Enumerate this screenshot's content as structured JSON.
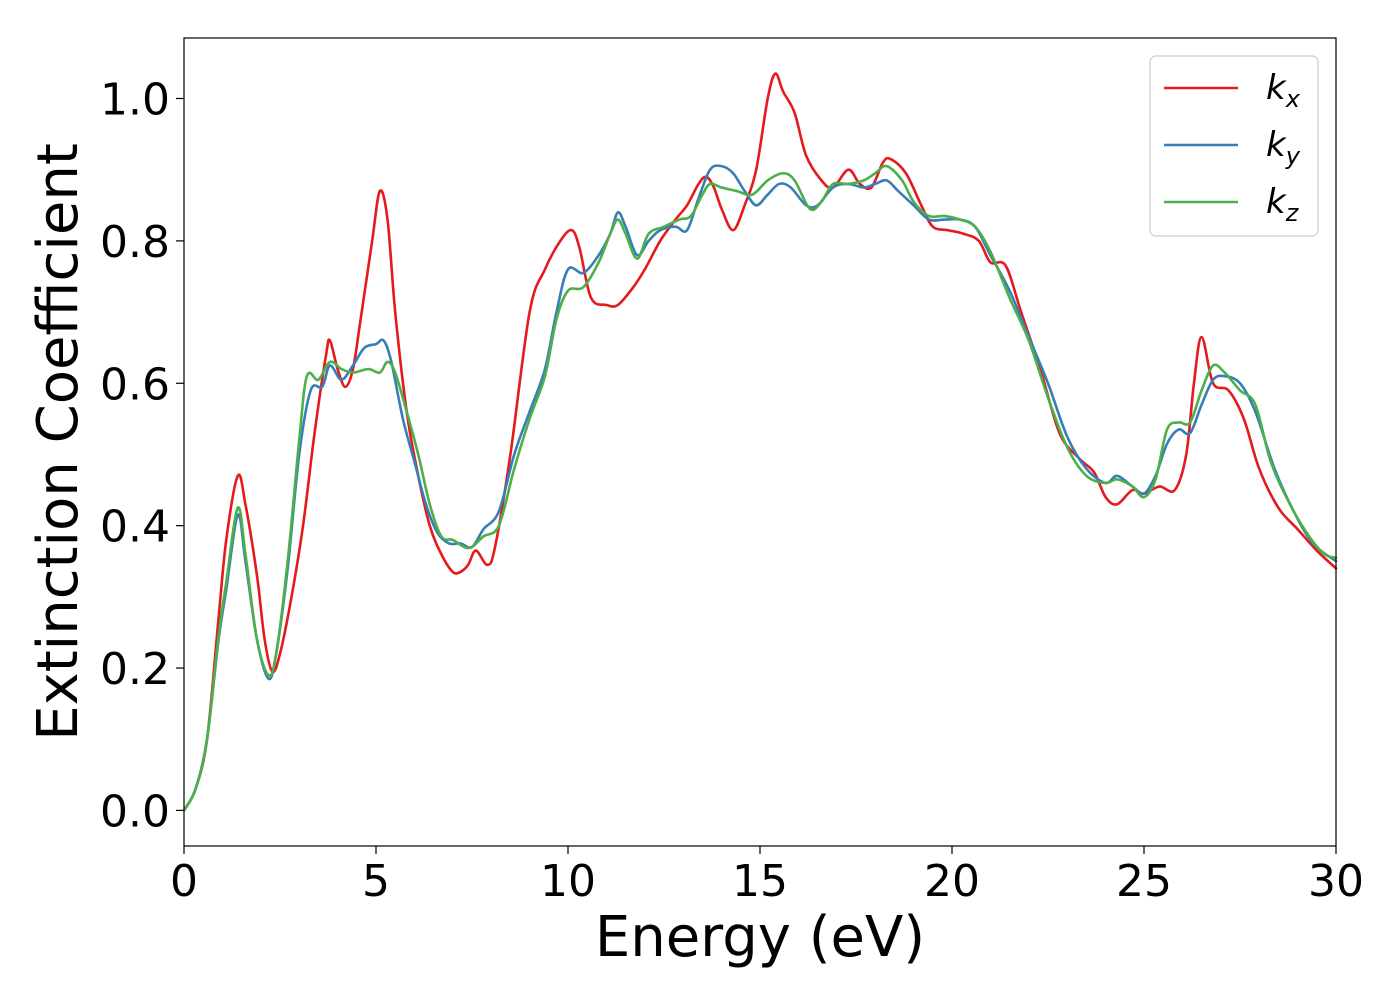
{
  "chart_data": {
    "type": "line",
    "xlabel": "Energy (eV)",
    "ylabel": "Extinction Coefficient",
    "xlim": [
      0,
      30
    ],
    "ylim": [
      -0.05,
      1.085
    ],
    "xticks": [
      0,
      5,
      10,
      15,
      20,
      25,
      30
    ],
    "yticks": [
      0.0,
      0.2,
      0.4,
      0.6,
      0.8,
      1.0
    ],
    "xtick_labels": [
      "0",
      "5",
      "10",
      "15",
      "20",
      "25",
      "30"
    ],
    "ytick_labels": [
      "0.0",
      "0.2",
      "0.4",
      "0.6",
      "0.8",
      "1.0"
    ],
    "grid": false,
    "legend_position": "top-right",
    "series": [
      {
        "name": "k_x",
        "label_base": "k",
        "label_sub": "x",
        "color": "#e41a1c",
        "points": [
          [
            0,
            0.0
          ],
          [
            0.3,
            0.03
          ],
          [
            0.6,
            0.1
          ],
          [
            0.9,
            0.27
          ],
          [
            1.1,
            0.38
          ],
          [
            1.4,
            0.47
          ],
          [
            1.6,
            0.43
          ],
          [
            1.9,
            0.33
          ],
          [
            2.1,
            0.24
          ],
          [
            2.3,
            0.195
          ],
          [
            2.5,
            0.22
          ],
          [
            2.8,
            0.3
          ],
          [
            3.1,
            0.4
          ],
          [
            3.4,
            0.53
          ],
          [
            3.7,
            0.64
          ],
          [
            3.8,
            0.66
          ],
          [
            4.0,
            0.62
          ],
          [
            4.2,
            0.595
          ],
          [
            4.4,
            0.62
          ],
          [
            4.6,
            0.69
          ],
          [
            4.9,
            0.8
          ],
          [
            5.1,
            0.87
          ],
          [
            5.3,
            0.83
          ],
          [
            5.5,
            0.7
          ],
          [
            5.8,
            0.56
          ],
          [
            6.1,
            0.47
          ],
          [
            6.4,
            0.4
          ],
          [
            6.7,
            0.36
          ],
          [
            7.0,
            0.335
          ],
          [
            7.2,
            0.335
          ],
          [
            7.4,
            0.345
          ],
          [
            7.6,
            0.365
          ],
          [
            7.9,
            0.345
          ],
          [
            8.1,
            0.37
          ],
          [
            8.5,
            0.5
          ],
          [
            9.0,
            0.7
          ],
          [
            9.4,
            0.76
          ],
          [
            9.8,
            0.8
          ],
          [
            10.1,
            0.815
          ],
          [
            10.3,
            0.79
          ],
          [
            10.6,
            0.72
          ],
          [
            11.0,
            0.71
          ],
          [
            11.3,
            0.71
          ],
          [
            11.7,
            0.735
          ],
          [
            12.0,
            0.76
          ],
          [
            12.4,
            0.8
          ],
          [
            12.8,
            0.83
          ],
          [
            13.1,
            0.85
          ],
          [
            13.4,
            0.88
          ],
          [
            13.6,
            0.89
          ],
          [
            13.8,
            0.875
          ],
          [
            14.0,
            0.845
          ],
          [
            14.3,
            0.815
          ],
          [
            14.6,
            0.85
          ],
          [
            14.9,
            0.9
          ],
          [
            15.2,
            1.0
          ],
          [
            15.4,
            1.035
          ],
          [
            15.6,
            1.01
          ],
          [
            15.9,
            0.98
          ],
          [
            16.2,
            0.92
          ],
          [
            16.6,
            0.885
          ],
          [
            16.9,
            0.875
          ],
          [
            17.3,
            0.9
          ],
          [
            17.6,
            0.88
          ],
          [
            17.9,
            0.875
          ],
          [
            18.2,
            0.91
          ],
          [
            18.4,
            0.915
          ],
          [
            18.8,
            0.895
          ],
          [
            19.2,
            0.85
          ],
          [
            19.5,
            0.82
          ],
          [
            19.9,
            0.815
          ],
          [
            20.3,
            0.81
          ],
          [
            20.7,
            0.8
          ],
          [
            21.0,
            0.77
          ],
          [
            21.4,
            0.765
          ],
          [
            21.8,
            0.7
          ],
          [
            22.3,
            0.62
          ],
          [
            22.8,
            0.53
          ],
          [
            23.3,
            0.495
          ],
          [
            23.7,
            0.475
          ],
          [
            24.0,
            0.44
          ],
          [
            24.3,
            0.43
          ],
          [
            24.7,
            0.45
          ],
          [
            25.0,
            0.445
          ],
          [
            25.4,
            0.455
          ],
          [
            25.8,
            0.45
          ],
          [
            26.1,
            0.5
          ],
          [
            26.3,
            0.6
          ],
          [
            26.5,
            0.665
          ],
          [
            26.8,
            0.6
          ],
          [
            27.2,
            0.59
          ],
          [
            27.6,
            0.55
          ],
          [
            28.0,
            0.48
          ],
          [
            28.5,
            0.425
          ],
          [
            29.0,
            0.395
          ],
          [
            29.5,
            0.365
          ],
          [
            30.0,
            0.34
          ]
        ]
      },
      {
        "name": "k_y",
        "label_base": "k",
        "label_sub": "y",
        "color": "#377eb8",
        "points": [
          [
            0,
            0.0
          ],
          [
            0.3,
            0.03
          ],
          [
            0.6,
            0.1
          ],
          [
            0.9,
            0.24
          ],
          [
            1.1,
            0.31
          ],
          [
            1.4,
            0.415
          ],
          [
            1.6,
            0.35
          ],
          [
            1.9,
            0.24
          ],
          [
            2.2,
            0.185
          ],
          [
            2.4,
            0.22
          ],
          [
            2.7,
            0.34
          ],
          [
            3.0,
            0.5
          ],
          [
            3.3,
            0.59
          ],
          [
            3.6,
            0.595
          ],
          [
            3.8,
            0.625
          ],
          [
            4.1,
            0.605
          ],
          [
            4.4,
            0.625
          ],
          [
            4.7,
            0.65
          ],
          [
            5.0,
            0.655
          ],
          [
            5.2,
            0.66
          ],
          [
            5.4,
            0.63
          ],
          [
            5.7,
            0.55
          ],
          [
            6.0,
            0.49
          ],
          [
            6.3,
            0.43
          ],
          [
            6.6,
            0.39
          ],
          [
            6.9,
            0.375
          ],
          [
            7.2,
            0.375
          ],
          [
            7.5,
            0.37
          ],
          [
            7.8,
            0.395
          ],
          [
            8.2,
            0.42
          ],
          [
            8.6,
            0.5
          ],
          [
            9.0,
            0.56
          ],
          [
            9.4,
            0.62
          ],
          [
            9.7,
            0.7
          ],
          [
            10.0,
            0.76
          ],
          [
            10.4,
            0.755
          ],
          [
            10.8,
            0.78
          ],
          [
            11.1,
            0.81
          ],
          [
            11.3,
            0.84
          ],
          [
            11.5,
            0.82
          ],
          [
            11.8,
            0.78
          ],
          [
            12.1,
            0.8
          ],
          [
            12.4,
            0.815
          ],
          [
            12.8,
            0.82
          ],
          [
            13.1,
            0.815
          ],
          [
            13.4,
            0.86
          ],
          [
            13.7,
            0.9
          ],
          [
            14.0,
            0.905
          ],
          [
            14.3,
            0.895
          ],
          [
            14.6,
            0.87
          ],
          [
            14.9,
            0.85
          ],
          [
            15.2,
            0.865
          ],
          [
            15.5,
            0.88
          ],
          [
            15.8,
            0.875
          ],
          [
            16.2,
            0.85
          ],
          [
            16.5,
            0.85
          ],
          [
            16.9,
            0.875
          ],
          [
            17.3,
            0.88
          ],
          [
            17.7,
            0.875
          ],
          [
            18.0,
            0.88
          ],
          [
            18.3,
            0.885
          ],
          [
            18.6,
            0.87
          ],
          [
            19.0,
            0.85
          ],
          [
            19.4,
            0.83
          ],
          [
            19.8,
            0.83
          ],
          [
            20.2,
            0.83
          ],
          [
            20.6,
            0.82
          ],
          [
            21.0,
            0.78
          ],
          [
            21.5,
            0.73
          ],
          [
            22.0,
            0.665
          ],
          [
            22.5,
            0.6
          ],
          [
            23.0,
            0.525
          ],
          [
            23.5,
            0.48
          ],
          [
            24.0,
            0.46
          ],
          [
            24.3,
            0.47
          ],
          [
            24.7,
            0.455
          ],
          [
            25.0,
            0.445
          ],
          [
            25.3,
            0.47
          ],
          [
            25.6,
            0.515
          ],
          [
            25.9,
            0.535
          ],
          [
            26.2,
            0.53
          ],
          [
            26.5,
            0.57
          ],
          [
            26.8,
            0.605
          ],
          [
            27.1,
            0.61
          ],
          [
            27.5,
            0.6
          ],
          [
            27.9,
            0.56
          ],
          [
            28.4,
            0.48
          ],
          [
            28.9,
            0.42
          ],
          [
            29.4,
            0.375
          ],
          [
            30.0,
            0.35
          ]
        ]
      },
      {
        "name": "k_z",
        "label_base": "k",
        "label_sub": "z",
        "color": "#4daf4a",
        "points": [
          [
            0,
            0.0
          ],
          [
            0.3,
            0.03
          ],
          [
            0.6,
            0.1
          ],
          [
            0.9,
            0.245
          ],
          [
            1.1,
            0.32
          ],
          [
            1.4,
            0.425
          ],
          [
            1.6,
            0.36
          ],
          [
            1.9,
            0.24
          ],
          [
            2.2,
            0.19
          ],
          [
            2.4,
            0.22
          ],
          [
            2.7,
            0.35
          ],
          [
            3.0,
            0.52
          ],
          [
            3.2,
            0.61
          ],
          [
            3.5,
            0.605
          ],
          [
            3.8,
            0.63
          ],
          [
            4.1,
            0.62
          ],
          [
            4.4,
            0.615
          ],
          [
            4.8,
            0.62
          ],
          [
            5.1,
            0.615
          ],
          [
            5.3,
            0.63
          ],
          [
            5.5,
            0.615
          ],
          [
            5.8,
            0.56
          ],
          [
            6.1,
            0.5
          ],
          [
            6.4,
            0.43
          ],
          [
            6.7,
            0.385
          ],
          [
            7.0,
            0.38
          ],
          [
            7.3,
            0.37
          ],
          [
            7.5,
            0.37
          ],
          [
            7.8,
            0.385
          ],
          [
            8.2,
            0.4
          ],
          [
            8.6,
            0.48
          ],
          [
            9.0,
            0.55
          ],
          [
            9.4,
            0.61
          ],
          [
            9.7,
            0.69
          ],
          [
            10.0,
            0.73
          ],
          [
            10.4,
            0.735
          ],
          [
            10.8,
            0.77
          ],
          [
            11.1,
            0.81
          ],
          [
            11.3,
            0.83
          ],
          [
            11.5,
            0.81
          ],
          [
            11.8,
            0.775
          ],
          [
            12.1,
            0.81
          ],
          [
            12.5,
            0.82
          ],
          [
            12.9,
            0.83
          ],
          [
            13.2,
            0.835
          ],
          [
            13.5,
            0.865
          ],
          [
            13.7,
            0.88
          ],
          [
            14.0,
            0.875
          ],
          [
            14.4,
            0.87
          ],
          [
            14.8,
            0.865
          ],
          [
            15.2,
            0.885
          ],
          [
            15.6,
            0.895
          ],
          [
            15.9,
            0.885
          ],
          [
            16.3,
            0.845
          ],
          [
            16.6,
            0.855
          ],
          [
            16.9,
            0.88
          ],
          [
            17.3,
            0.88
          ],
          [
            17.7,
            0.885
          ],
          [
            18.0,
            0.895
          ],
          [
            18.3,
            0.905
          ],
          [
            18.7,
            0.885
          ],
          [
            19.0,
            0.855
          ],
          [
            19.4,
            0.835
          ],
          [
            19.8,
            0.835
          ],
          [
            20.2,
            0.83
          ],
          [
            20.6,
            0.82
          ],
          [
            21.0,
            0.785
          ],
          [
            21.5,
            0.72
          ],
          [
            22.0,
            0.66
          ],
          [
            22.5,
            0.58
          ],
          [
            23.0,
            0.51
          ],
          [
            23.5,
            0.47
          ],
          [
            24.0,
            0.46
          ],
          [
            24.3,
            0.465
          ],
          [
            24.7,
            0.455
          ],
          [
            25.0,
            0.44
          ],
          [
            25.3,
            0.465
          ],
          [
            25.6,
            0.535
          ],
          [
            25.9,
            0.545
          ],
          [
            26.2,
            0.545
          ],
          [
            26.5,
            0.59
          ],
          [
            26.8,
            0.625
          ],
          [
            27.1,
            0.615
          ],
          [
            27.5,
            0.59
          ],
          [
            27.9,
            0.57
          ],
          [
            28.3,
            0.49
          ],
          [
            28.8,
            0.43
          ],
          [
            29.3,
            0.385
          ],
          [
            29.7,
            0.36
          ],
          [
            30.0,
            0.355
          ]
        ]
      }
    ]
  }
}
